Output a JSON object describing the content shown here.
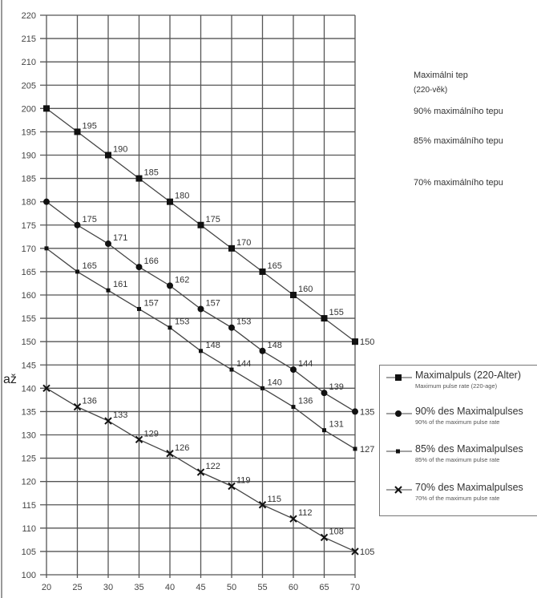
{
  "chart_data": {
    "type": "line",
    "x": [
      20,
      25,
      30,
      35,
      40,
      45,
      50,
      55,
      60,
      65,
      70
    ],
    "xlim": [
      20,
      70
    ],
    "ylim": [
      100,
      220
    ],
    "xticks": [
      20,
      25,
      30,
      35,
      40,
      45,
      50,
      55,
      60,
      65,
      70
    ],
    "yticks": [
      100,
      105,
      110,
      115,
      120,
      125,
      130,
      135,
      140,
      145,
      150,
      155,
      160,
      165,
      170,
      175,
      180,
      185,
      190,
      195,
      200,
      205,
      210,
      215,
      220
    ],
    "grid": true,
    "legend_position": "right",
    "series": [
      {
        "name": "Maximalpuls (220-Alter)",
        "subname": "Maximum pulse rate (220-age)",
        "marker": "square",
        "values": [
          200,
          195,
          190,
          185,
          180,
          175,
          170,
          165,
          160,
          155,
          150
        ]
      },
      {
        "name": "90% des Maximalpulses",
        "subname": "90% of the maximum pulse rate",
        "marker": "circle",
        "values": [
          180,
          175,
          171,
          166,
          162,
          157,
          153,
          148,
          144,
          139,
          135
        ]
      },
      {
        "name": "85% des Maximalpulses",
        "subname": "85% of the maximum pulse rate",
        "marker": "small-square",
        "values": [
          170,
          165,
          161,
          157,
          153,
          148,
          144,
          140,
          136,
          131,
          127
        ]
      },
      {
        "name": "70% des Maximalpulses",
        "subname": "70% of the maximum pulse rate",
        "marker": "x",
        "values": [
          140,
          136,
          133,
          129,
          126,
          122,
          119,
          115,
          112,
          108,
          105
        ]
      }
    ]
  },
  "annotations": {
    "czech_max_line1": "Maximálni tep",
    "czech_max_line2": "(220-věk)",
    "czech_90": "90% maximálního tepu",
    "czech_85": "85% maximálního tepu",
    "czech_70": "70% maximálního tepu",
    "side_text": "až"
  }
}
